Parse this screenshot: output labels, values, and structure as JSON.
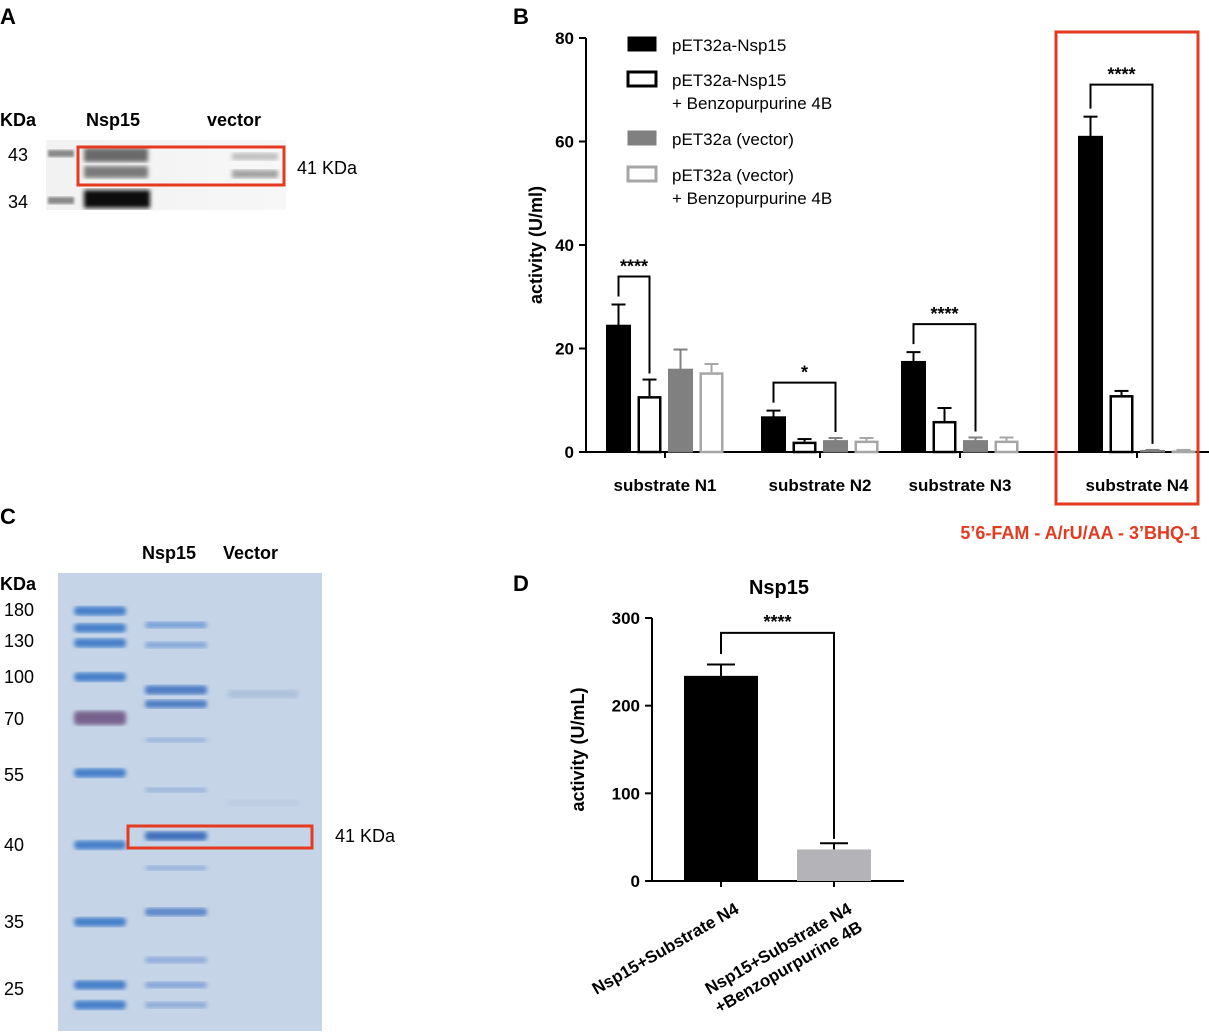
{
  "panels": {
    "a": {
      "letter": "A",
      "unit_label": "KDa",
      "lanes": [
        "Nsp15",
        "vector"
      ],
      "markers": [
        "43",
        "34"
      ],
      "band_label": "41 KDa"
    },
    "c": {
      "letter": "C",
      "unit_label": "KDa",
      "lanes": [
        "Nsp15",
        "Vector"
      ],
      "markers": [
        "180",
        "130",
        "100",
        "70",
        "55",
        "40",
        "35",
        "25"
      ],
      "band_label": "41 KDa"
    },
    "b": {
      "letter": "B",
      "substrate_note": "5’6-FAM - A/rU/AA - 3’BHQ-1"
    },
    "d": {
      "letter": "D"
    }
  },
  "colors": {
    "highlight": "#e53a1f",
    "black": "#000000",
    "gray": "#808080",
    "lightgray": "#a6a6a6",
    "d_bar2": "#b4b4b8",
    "gel_blue": "#c5d4e7"
  },
  "chart_data": [
    {
      "id": "B",
      "type": "bar",
      "ylabel": "activity (U/ml)",
      "xlabel": "",
      "ylim": [
        0,
        80
      ],
      "yticks": [
        "0",
        "20",
        "40",
        "60",
        "80"
      ],
      "categories": [
        "substrate N1",
        "substrate N2",
        "substrate N3",
        "substrate N4"
      ],
      "series": [
        {
          "name": "pET32a-Nsp15",
          "name2": "",
          "fill": "#000000",
          "stroke": "#000000",
          "values": [
            24.5,
            6.8,
            17.5,
            61
          ],
          "errors": [
            4,
            1.2,
            1.8,
            3.8
          ]
        },
        {
          "name": "pET32a-Nsp15",
          "name2": "+ Benzopurpurine 4B",
          "fill": "#ffffff",
          "stroke": "#000000",
          "values": [
            10.8,
            2,
            6,
            11
          ],
          "errors": [
            3.2,
            0.5,
            2.5,
            0.8
          ]
        },
        {
          "name": "pET32a (vector)",
          "name2": "",
          "fill": "#808080",
          "stroke": "#808080",
          "values": [
            16,
            2.2,
            2.2,
            0.3
          ],
          "errors": [
            3.8,
            0.5,
            0.6,
            0.1
          ]
        },
        {
          "name": "pET32a (vector)",
          "name2": "+ Benzopurpurine 4B",
          "fill": "#ffffff",
          "stroke": "#a6a6a6",
          "values": [
            15.4,
            2.2,
            2.2,
            0.3
          ],
          "errors": [
            1.6,
            0.5,
            0.6,
            0.1
          ]
        }
      ],
      "significance": [
        {
          "category": 0,
          "from_series": 0,
          "to_series": 1,
          "label": "****"
        },
        {
          "category": 1,
          "from_series": 0,
          "to_series": 2,
          "label": "*"
        },
        {
          "category": 2,
          "from_series": 0,
          "to_series": 2,
          "label": "****"
        },
        {
          "category": 3,
          "from_series": 0,
          "to_series": 2,
          "label": "****"
        }
      ],
      "highlighted_category": 3
    },
    {
      "id": "D",
      "type": "bar",
      "title": "Nsp15",
      "ylabel": "activity (U/mL)",
      "xlabel": "",
      "ylim": [
        0,
        300
      ],
      "yticks": [
        "0",
        "100",
        "200",
        "300"
      ],
      "categories": [
        [
          "Nsp15+Substrate N4"
        ],
        [
          "Nsp15+Substrate N4",
          "+Benzopurpurine 4B"
        ]
      ],
      "values": [
        234,
        36
      ],
      "errors": [
        13,
        7
      ],
      "bar_colors": [
        "#000000",
        "#b4b4b8"
      ],
      "significance": [
        {
          "from": 0,
          "to": 1,
          "label": "****"
        }
      ]
    }
  ]
}
